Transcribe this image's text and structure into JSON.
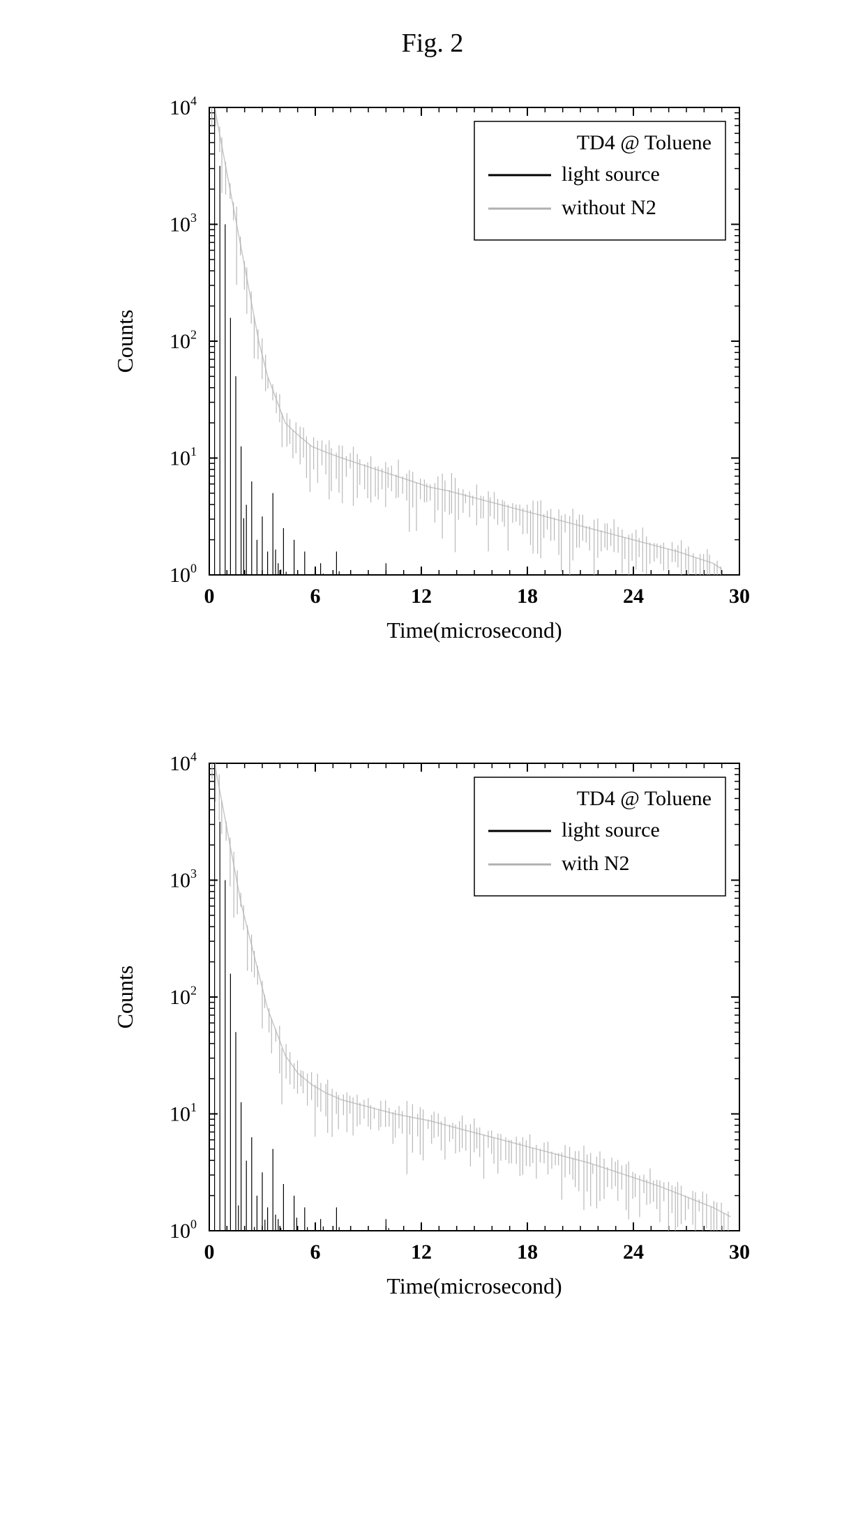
{
  "figure_title": "Fig. 2",
  "chart_top": {
    "type": "line-decay-log",
    "xlabel": "Time(microsecond)",
    "ylabel": "Counts",
    "xlim": [
      0,
      30
    ],
    "ylim_exp": [
      0,
      4
    ],
    "x_ticks": [
      0,
      6,
      12,
      18,
      24,
      30
    ],
    "y_tick_exps": [
      0,
      1,
      2,
      3,
      4
    ],
    "legend_title": "TD4 @ Toluene",
    "legend_items": [
      {
        "label": "light source",
        "color": "#000000"
      },
      {
        "label": "without N2",
        "color": "#b0b0b0"
      }
    ],
    "background_color": "#ffffff",
    "axis_color": "#000000",
    "tick_fontsize": 30,
    "label_fontsize": 32,
    "legend_fontsize": 30,
    "series_light": {
      "color": "#000000",
      "stroke_width": 1.2,
      "decay": [
        [
          0.0,
          0.0
        ],
        [
          0.3,
          4.0
        ],
        [
          0.6,
          3.5
        ],
        [
          0.9,
          3.0
        ],
        [
          1.2,
          2.2
        ],
        [
          1.5,
          1.7
        ],
        [
          1.8,
          1.1
        ],
        [
          2.1,
          0.6
        ],
        [
          2.4,
          0.8
        ],
        [
          2.7,
          0.3
        ],
        [
          3.0,
          0.5
        ],
        [
          3.3,
          0.2
        ],
        [
          3.6,
          0.7
        ],
        [
          3.9,
          0.1
        ],
        [
          4.2,
          0.4
        ],
        [
          4.5,
          0.0
        ],
        [
          4.8,
          0.3
        ],
        [
          5.1,
          0.0
        ],
        [
          5.4,
          0.2
        ],
        [
          5.7,
          0.0
        ],
        [
          6.3,
          0.1
        ],
        [
          7.2,
          0.2
        ],
        [
          8.5,
          0.0
        ],
        [
          10.0,
          0.1
        ]
      ]
    },
    "series_sample": {
      "color": "#b0b0b0",
      "stroke_width": 1.2,
      "decay": [
        [
          0.3,
          4.0
        ],
        [
          0.8,
          3.6
        ],
        [
          1.3,
          3.2
        ],
        [
          1.8,
          2.8
        ],
        [
          2.3,
          2.4
        ],
        [
          2.8,
          2.0
        ],
        [
          3.3,
          1.7
        ],
        [
          3.8,
          1.5
        ],
        [
          4.3,
          1.3
        ],
        [
          5.0,
          1.2
        ],
        [
          5.8,
          1.1
        ],
        [
          6.6,
          1.05
        ],
        [
          7.5,
          1.0
        ],
        [
          8.5,
          0.95
        ],
        [
          9.5,
          0.9
        ],
        [
          10.5,
          0.85
        ],
        [
          11.5,
          0.8
        ],
        [
          12.5,
          0.75
        ],
        [
          13.5,
          0.72
        ],
        [
          14.5,
          0.68
        ],
        [
          15.5,
          0.64
        ],
        [
          16.5,
          0.6
        ],
        [
          17.5,
          0.56
        ],
        [
          18.5,
          0.52
        ],
        [
          19.5,
          0.48
        ],
        [
          20.5,
          0.44
        ],
        [
          21.5,
          0.4
        ],
        [
          22.5,
          0.36
        ],
        [
          23.5,
          0.32
        ],
        [
          24.5,
          0.28
        ],
        [
          25.5,
          0.24
        ],
        [
          26.5,
          0.2
        ],
        [
          27.5,
          0.15
        ],
        [
          28.5,
          0.1
        ],
        [
          29.0,
          0.05
        ]
      ],
      "noise_amp": 0.35,
      "noise_density": 5
    }
  },
  "chart_bottom": {
    "type": "line-decay-log",
    "xlabel": "Time(microsecond)",
    "ylabel": "Counts",
    "xlim": [
      0,
      30
    ],
    "ylim_exp": [
      0,
      4
    ],
    "x_ticks": [
      0,
      6,
      12,
      18,
      24,
      30
    ],
    "y_tick_exps": [
      0,
      1,
      2,
      3,
      4
    ],
    "legend_title": "TD4 @ Toluene",
    "legend_items": [
      {
        "label": "light source",
        "color": "#000000"
      },
      {
        "label": "with N2",
        "color": "#b0b0b0"
      }
    ],
    "background_color": "#ffffff",
    "axis_color": "#000000",
    "tick_fontsize": 30,
    "label_fontsize": 32,
    "legend_fontsize": 30,
    "series_light": {
      "color": "#000000",
      "stroke_width": 1.2,
      "decay": [
        [
          0.0,
          0.0
        ],
        [
          0.3,
          4.0
        ],
        [
          0.6,
          3.5
        ],
        [
          0.9,
          3.0
        ],
        [
          1.2,
          2.2
        ],
        [
          1.5,
          1.7
        ],
        [
          1.8,
          1.1
        ],
        [
          2.1,
          0.6
        ],
        [
          2.4,
          0.8
        ],
        [
          2.7,
          0.3
        ],
        [
          3.0,
          0.5
        ],
        [
          3.3,
          0.2
        ],
        [
          3.6,
          0.7
        ],
        [
          3.9,
          0.1
        ],
        [
          4.2,
          0.4
        ],
        [
          4.5,
          0.0
        ],
        [
          4.8,
          0.3
        ],
        [
          5.1,
          0.0
        ],
        [
          5.4,
          0.2
        ],
        [
          5.7,
          0.0
        ],
        [
          6.3,
          0.1
        ],
        [
          7.2,
          0.2
        ],
        [
          8.5,
          0.0
        ],
        [
          10.0,
          0.1
        ]
      ]
    },
    "series_sample": {
      "color": "#b0b0b0",
      "stroke_width": 1.2,
      "decay": [
        [
          0.3,
          4.0
        ],
        [
          0.8,
          3.6
        ],
        [
          1.3,
          3.2
        ],
        [
          1.8,
          2.8
        ],
        [
          2.3,
          2.5
        ],
        [
          2.8,
          2.2
        ],
        [
          3.3,
          1.9
        ],
        [
          3.8,
          1.7
        ],
        [
          4.3,
          1.5
        ],
        [
          5.0,
          1.35
        ],
        [
          5.8,
          1.25
        ],
        [
          6.6,
          1.18
        ],
        [
          7.5,
          1.12
        ],
        [
          8.5,
          1.08
        ],
        [
          9.5,
          1.04
        ],
        [
          10.5,
          1.0
        ],
        [
          11.5,
          0.97
        ],
        [
          12.5,
          0.94
        ],
        [
          13.5,
          0.9
        ],
        [
          14.5,
          0.86
        ],
        [
          15.5,
          0.82
        ],
        [
          16.5,
          0.78
        ],
        [
          17.5,
          0.74
        ],
        [
          18.5,
          0.7
        ],
        [
          19.5,
          0.66
        ],
        [
          20.5,
          0.62
        ],
        [
          21.5,
          0.58
        ],
        [
          22.5,
          0.53
        ],
        [
          23.5,
          0.48
        ],
        [
          24.5,
          0.43
        ],
        [
          25.5,
          0.38
        ],
        [
          26.5,
          0.32
        ],
        [
          27.5,
          0.26
        ],
        [
          28.5,
          0.2
        ],
        [
          29.5,
          0.12
        ]
      ],
      "noise_amp": 0.35,
      "noise_density": 5
    }
  }
}
